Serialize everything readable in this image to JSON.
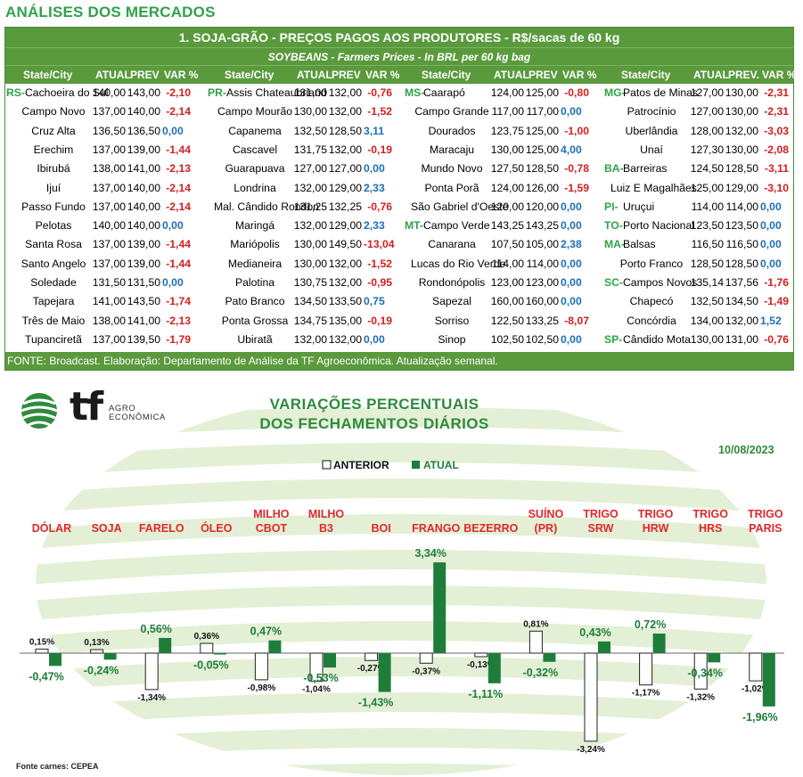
{
  "page_title": "ANÁLISES DOS MERCADOS",
  "table": {
    "title": "1. SOJA-GRÃO - PREÇOS PAGOS AOS PRODUTORES - R$/sacas de 60 kg",
    "subtitle": "SOYBEANS - Farmers Prices - In BRL per 60 kg bag",
    "col_headers": [
      "State/City",
      "ATUAL",
      "PREV",
      "VAR %"
    ],
    "col_headers_last": [
      "State/City",
      "ATUAL",
      "PREV.",
      "VAR %"
    ],
    "footer": "FONTE: Broadcast. Elaboração: Departamento de Análise da TF Agroeconômica. Atualização semanal.",
    "groups": [
      [
        {
          "state": "RS",
          "city": "Cachoeira do Sul",
          "atual": "140,00",
          "prev": "143,00",
          "var": "-2,10"
        },
        {
          "state": "",
          "city": "Campo Novo",
          "atual": "137,00",
          "prev": "140,00",
          "var": "-2,14"
        },
        {
          "state": "",
          "city": "Cruz Alta",
          "atual": "136,50",
          "prev": "136,50",
          "var": "0,00"
        },
        {
          "state": "",
          "city": "Erechim",
          "atual": "137,00",
          "prev": "139,00",
          "var": "-1,44"
        },
        {
          "state": "",
          "city": "Ibirubá",
          "atual": "138,00",
          "prev": "141,00",
          "var": "-2,13"
        },
        {
          "state": "",
          "city": "Ijuí",
          "atual": "137,00",
          "prev": "140,00",
          "var": "-2,14"
        },
        {
          "state": "",
          "city": "Passo Fundo",
          "atual": "137,00",
          "prev": "140,00",
          "var": "-2,14"
        },
        {
          "state": "",
          "city": "Pelotas",
          "atual": "140,00",
          "prev": "140,00",
          "var": "0,00"
        },
        {
          "state": "",
          "city": "Santa Rosa",
          "atual": "137,00",
          "prev": "139,00",
          "var": "-1,44"
        },
        {
          "state": "",
          "city": "Santo Angelo",
          "atual": "137,00",
          "prev": "139,00",
          "var": "-1,44"
        },
        {
          "state": "",
          "city": "Soledade",
          "atual": "131,50",
          "prev": "131,50",
          "var": "0,00"
        },
        {
          "state": "",
          "city": "Tapejara",
          "atual": "141,00",
          "prev": "143,50",
          "var": "-1,74"
        },
        {
          "state": "",
          "city": "Três de Maio",
          "atual": "138,00",
          "prev": "141,00",
          "var": "-2,13"
        },
        {
          "state": "",
          "city": "Tupanciretã",
          "atual": "137,00",
          "prev": "139,50",
          "var": "-1,79"
        }
      ],
      [
        {
          "state": "PR",
          "city": "Assis Chateaubriand",
          "atual": "131,00",
          "prev": "132,00",
          "var": "-0,76"
        },
        {
          "state": "",
          "city": "Campo Mourão",
          "atual": "130,00",
          "prev": "132,00",
          "var": "-1,52"
        },
        {
          "state": "",
          "city": "Capanema",
          "atual": "132,50",
          "prev": "128,50",
          "var": "3,11"
        },
        {
          "state": "",
          "city": "Cascavel",
          "atual": "131,75",
          "prev": "132,00",
          "var": "-0,19"
        },
        {
          "state": "",
          "city": "Guarapuava",
          "atual": "127,00",
          "prev": "127,00",
          "var": "0,00"
        },
        {
          "state": "",
          "city": "Londrina",
          "atual": "132,00",
          "prev": "129,00",
          "var": "2,33"
        },
        {
          "state": "",
          "city": "Mal. Cândido Rondon",
          "atual": "131,25",
          "prev": "132,25",
          "var": "-0,76"
        },
        {
          "state": "",
          "city": "Maringá",
          "atual": "132,00",
          "prev": "129,00",
          "var": "2,33"
        },
        {
          "state": "",
          "city": "Mariópolis",
          "atual": "130,00",
          "prev": "149,50",
          "var": "-13,04"
        },
        {
          "state": "",
          "city": "Medianeira",
          "atual": "130,00",
          "prev": "132,00",
          "var": "-1,52"
        },
        {
          "state": "",
          "city": "Palotina",
          "atual": "130,75",
          "prev": "132,00",
          "var": "-0,95"
        },
        {
          "state": "",
          "city": "Pato Branco",
          "atual": "134,50",
          "prev": "133,50",
          "var": "0,75"
        },
        {
          "state": "",
          "city": "Ponta Grossa",
          "atual": "134,75",
          "prev": "135,00",
          "var": "-0,19"
        },
        {
          "state": "",
          "city": "Ubiratã",
          "atual": "132,00",
          "prev": "132,00",
          "var": "0,00"
        }
      ],
      [
        {
          "state": "MS",
          "city": "Caarapó",
          "atual": "124,00",
          "prev": "125,00",
          "var": "-0,80"
        },
        {
          "state": "",
          "city": "Campo Grande",
          "atual": "117,00",
          "prev": "117,00",
          "var": "0,00"
        },
        {
          "state": "",
          "city": "Dourados",
          "atual": "123,75",
          "prev": "125,00",
          "var": "-1,00"
        },
        {
          "state": "",
          "city": "Maracaju",
          "atual": "130,00",
          "prev": "125,00",
          "var": "4,00"
        },
        {
          "state": "",
          "city": "Mundo Novo",
          "atual": "127,50",
          "prev": "128,50",
          "var": "-0,78"
        },
        {
          "state": "",
          "city": "Ponta Porã",
          "atual": "124,00",
          "prev": "126,00",
          "var": "-1,59"
        },
        {
          "state": "",
          "city": "São Gabriel d'Oeste",
          "atual": "120,00",
          "prev": "120,00",
          "var": "0,00"
        },
        {
          "state": "MT",
          "city": "Campo Verde",
          "atual": "143,25",
          "prev": "143,25",
          "var": "0,00"
        },
        {
          "state": "",
          "city": "Canarana",
          "atual": "107,50",
          "prev": "105,00",
          "var": "2,38"
        },
        {
          "state": "",
          "city": "Lucas do Rio Verde",
          "atual": "114,00",
          "prev": "114,00",
          "var": "0,00"
        },
        {
          "state": "",
          "city": "Rondonópolis",
          "atual": "123,00",
          "prev": "123,00",
          "var": "0,00"
        },
        {
          "state": "",
          "city": "Sapezal",
          "atual": "160,00",
          "prev": "160,00",
          "var": "0,00"
        },
        {
          "state": "",
          "city": "Sorriso",
          "atual": "122,50",
          "prev": "133,25",
          "var": "-8,07"
        },
        {
          "state": "",
          "city": "Sinop",
          "atual": "102,50",
          "prev": "102,50",
          "var": "0,00"
        }
      ],
      [
        {
          "state": "MG",
          "city": "Patos de Minas",
          "atual": "127,00",
          "prev": "130,00",
          "var": "-2,31"
        },
        {
          "state": "",
          "city": "Patrocínio",
          "atual": "127,00",
          "prev": "130,00",
          "var": "-2,31"
        },
        {
          "state": "",
          "city": "Uberlândia",
          "atual": "128,00",
          "prev": "132,00",
          "var": "-3,03"
        },
        {
          "state": "",
          "city": "Unaí",
          "atual": "127,30",
          "prev": "130,00",
          "var": "-2,08"
        },
        {
          "state": "BA",
          "city": "Barreiras",
          "atual": "124,50",
          "prev": "128,50",
          "var": "-3,11"
        },
        {
          "state": "",
          "city": "Luiz E Magalhães",
          "atual": "125,00",
          "prev": "129,00",
          "var": "-3,10"
        },
        {
          "state": "PI",
          "city": "Uruçui",
          "atual": "114,00",
          "prev": "114,00",
          "var": "0,00"
        },
        {
          "state": "TO",
          "city": "Porto Nacional",
          "atual": "123,50",
          "prev": "123,50",
          "var": "0,00"
        },
        {
          "state": "MA",
          "city": "Balsas",
          "atual": "116,50",
          "prev": "116,50",
          "var": "0,00"
        },
        {
          "state": "",
          "city": "Porto Franco",
          "atual": "128,50",
          "prev": "128,50",
          "var": "0,00"
        },
        {
          "state": "SC",
          "city": "Campos Novos",
          "atual": "135,14",
          "prev": "137,56",
          "var": "-1,76"
        },
        {
          "state": "",
          "city": "Chapecó",
          "atual": "132,50",
          "prev": "134,50",
          "var": "-1,49"
        },
        {
          "state": "",
          "city": "Concórdia",
          "atual": "134,00",
          "prev": "132,00",
          "var": "1,52"
        },
        {
          "state": "SP",
          "city": "Cândido Mota",
          "atual": "130,00",
          "prev": "131,00",
          "var": "-0,76"
        }
      ]
    ]
  },
  "logo": {
    "brand": "tf",
    "line1": "AGRO",
    "line2": "ECONÔMICA",
    "icon": "leaf-globe-icon"
  },
  "chart_data": {
    "type": "bar",
    "title_line1": "VARIAÇÕES PERCENTUAIS",
    "title_line2": "DOS FECHAMENTOS DIÁRIOS",
    "date": "10/08/2023",
    "legend": {
      "position": "top-center",
      "entries": [
        "ANTERIOR",
        "ATUAL"
      ]
    },
    "categories": [
      [
        "DÓLAR"
      ],
      [
        "SOJA"
      ],
      [
        "FARELO"
      ],
      [
        "ÓLEO"
      ],
      [
        "MILHO",
        "CBOT"
      ],
      [
        "MILHO",
        "B3"
      ],
      [
        "BOI"
      ],
      [
        "FRANGO"
      ],
      [
        "BEZERRO"
      ],
      [
        "SUÍNO",
        "(PR)"
      ],
      [
        "TRIGO",
        "SRW"
      ],
      [
        "TRIGO",
        "HRW"
      ],
      [
        "TRIGO",
        "HRS"
      ],
      [
        "TRIGO",
        "PARIS"
      ]
    ],
    "series": [
      {
        "name": "ANTERIOR",
        "color": "#ffffff",
        "stroke": "#222222",
        "values": [
          0.15,
          0.13,
          -1.34,
          0.36,
          -0.98,
          -1.04,
          -0.27,
          -0.37,
          -0.13,
          0.81,
          -3.24,
          -1.17,
          -1.32,
          -1.02
        ],
        "labels": [
          "0,15%",
          "0,13%",
          "-1,34%",
          "0,36%",
          "-0,98%",
          "-1,04%",
          "-0,27%",
          "-0,37%",
          "-0,13%",
          "0,81%",
          "-3,24%",
          "-1,17%",
          "-1,32%",
          "-1,02%"
        ]
      },
      {
        "name": "ATUAL",
        "color": "#1e7d3a",
        "values": [
          -0.47,
          -0.24,
          0.56,
          -0.05,
          0.47,
          -0.53,
          -1.43,
          3.34,
          -1.11,
          -0.32,
          0.43,
          0.72,
          -0.34,
          -1.96
        ],
        "labels": [
          "-0,47%",
          "-0,24%",
          "0,56%",
          "-0,05%",
          "0,47%",
          "-0,53%",
          "-1,43%",
          "3,34%",
          "-1,11%",
          "-0,32%",
          "0,43%",
          "0,72%",
          "-0,34%",
          "-1,96%"
        ]
      }
    ],
    "colors": {
      "category_label": "#e0282a",
      "value_label_atual": "#1e7d3a",
      "value_label_anterior": "#111111"
    }
  },
  "source_note": "Fonte carnes: CEPEA"
}
